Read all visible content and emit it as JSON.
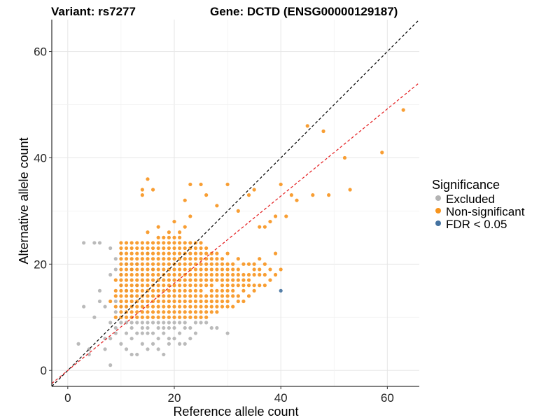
{
  "chart_data": {
    "type": "scatter",
    "title_left": "Variant: rs7277",
    "title_right": "Gene: DCTD (ENSG00000129187)",
    "xlabel": "Reference allele count",
    "ylabel": "Alternative allele count",
    "xlim": [
      -3,
      66
    ],
    "ylim": [
      -3,
      66
    ],
    "xticks": [
      0,
      20,
      40,
      60
    ],
    "yticks": [
      0,
      20,
      40,
      60
    ],
    "grid": true,
    "legend": {
      "title": "Significance",
      "placement": "right",
      "entries": [
        {
          "label": "Excluded",
          "color": "#b3b3b3"
        },
        {
          "label": "Non-significant",
          "color": "#f7941d"
        },
        {
          "label": "FDR < 0.05",
          "color": "#4472a0"
        }
      ]
    },
    "reference_lines": [
      {
        "name": "y = x",
        "slope": 1,
        "intercept": 0,
        "color": "#000000",
        "style": "dashed"
      },
      {
        "name": "fit",
        "slope": 0.82,
        "intercept": 0,
        "color": "#e41a1c",
        "style": "dashed"
      }
    ],
    "series": [
      {
        "name": "Excluded",
        "color": "#b3b3b3",
        "x": [
          2,
          3,
          3,
          4,
          4,
          5,
          5,
          6,
          6,
          6,
          7,
          7,
          7,
          8,
          8,
          8,
          8,
          8,
          9,
          9,
          9,
          9,
          9,
          9,
          10,
          10,
          10,
          10,
          10,
          10,
          11,
          11,
          11,
          11,
          11,
          11,
          12,
          12,
          12,
          12,
          12,
          12,
          13,
          13,
          13,
          13,
          13,
          14,
          14,
          14,
          14,
          14,
          15,
          15,
          15,
          15,
          15,
          16,
          16,
          16,
          16,
          17,
          17,
          17,
          17,
          18,
          18,
          18,
          18,
          19,
          19,
          19,
          19,
          20,
          20,
          20,
          21,
          21,
          21,
          22,
          22,
          22,
          23,
          23,
          24,
          24,
          25,
          26,
          27,
          28,
          30
        ],
        "y": [
          5,
          24,
          12,
          4,
          3,
          24,
          10,
          24,
          15,
          13,
          12,
          6,
          4,
          23,
          18,
          9,
          6,
          1,
          21,
          19,
          13,
          11,
          8,
          7,
          22,
          18,
          16,
          12,
          9,
          5,
          20,
          15,
          12,
          9,
          7,
          4,
          19,
          14,
          9,
          8,
          6,
          3,
          20,
          16,
          9,
          7,
          3,
          18,
          9,
          8,
          7,
          5,
          22,
          9,
          8,
          7,
          4,
          19,
          9,
          7,
          5,
          9,
          8,
          6,
          4,
          9,
          8,
          7,
          3,
          9,
          8,
          6,
          5,
          9,
          8,
          6,
          9,
          7,
          5,
          9,
          8,
          5,
          8,
          6,
          9,
          7,
          9,
          9,
          8,
          8,
          7
        ]
      },
      {
        "name": "Non-significant",
        "color": "#f7941d",
        "x": [
          8,
          9,
          9,
          9,
          9,
          9,
          10,
          10,
          10,
          10,
          10,
          10,
          10,
          10,
          10,
          10,
          10,
          10,
          10,
          10,
          10,
          11,
          11,
          11,
          11,
          11,
          11,
          11,
          11,
          11,
          11,
          11,
          11,
          11,
          11,
          11,
          12,
          12,
          12,
          12,
          12,
          12,
          12,
          12,
          12,
          12,
          12,
          12,
          12,
          12,
          12,
          13,
          13,
          13,
          13,
          13,
          13,
          13,
          13,
          13,
          13,
          13,
          13,
          13,
          13,
          13,
          14,
          14,
          14,
          14,
          14,
          14,
          14,
          14,
          14,
          14,
          14,
          14,
          14,
          14,
          14,
          15,
          15,
          15,
          15,
          15,
          15,
          15,
          15,
          15,
          15,
          15,
          15,
          15,
          15,
          15,
          15,
          16,
          16,
          16,
          16,
          16,
          16,
          16,
          16,
          16,
          16,
          16,
          16,
          16,
          16,
          16,
          17,
          17,
          17,
          17,
          17,
          17,
          17,
          17,
          17,
          17,
          17,
          17,
          17,
          17,
          17,
          17,
          17,
          18,
          18,
          18,
          18,
          18,
          18,
          18,
          18,
          18,
          18,
          18,
          18,
          18,
          18,
          18,
          18,
          19,
          19,
          19,
          19,
          19,
          19,
          19,
          19,
          19,
          19,
          19,
          19,
          19,
          19,
          19,
          19,
          19,
          20,
          20,
          20,
          20,
          20,
          20,
          20,
          20,
          20,
          20,
          20,
          20,
          20,
          20,
          20,
          20,
          20,
          21,
          21,
          21,
          21,
          21,
          21,
          21,
          21,
          21,
          21,
          21,
          21,
          21,
          21,
          21,
          21,
          21,
          22,
          22,
          22,
          22,
          22,
          22,
          22,
          22,
          22,
          22,
          22,
          22,
          22,
          22,
          22,
          22,
          23,
          23,
          23,
          23,
          23,
          23,
          23,
          23,
          23,
          23,
          23,
          23,
          23,
          23,
          23,
          23,
          24,
          24,
          24,
          24,
          24,
          24,
          24,
          24,
          24,
          24,
          24,
          24,
          24,
          24,
          24,
          25,
          25,
          25,
          25,
          25,
          25,
          25,
          25,
          25,
          25,
          25,
          25,
          25,
          25,
          25,
          26,
          26,
          26,
          26,
          26,
          26,
          26,
          26,
          26,
          26,
          26,
          26,
          26,
          27,
          27,
          27,
          27,
          27,
          27,
          27,
          27,
          27,
          27,
          27,
          27,
          28,
          28,
          28,
          28,
          28,
          28,
          28,
          28,
          28,
          28,
          28,
          29,
          29,
          29,
          29,
          29,
          29,
          29,
          29,
          29,
          29,
          30,
          30,
          30,
          30,
          30,
          30,
          30,
          30,
          30,
          30,
          31,
          31,
          31,
          31,
          31,
          31,
          31,
          31,
          32,
          32,
          32,
          32,
          32,
          32,
          32,
          33,
          33,
          33,
          33,
          33,
          33,
          34,
          34,
          34,
          34,
          34,
          35,
          35,
          35,
          35,
          35,
          36,
          36,
          36,
          36,
          37,
          37,
          37,
          38,
          38,
          39,
          39,
          40,
          14,
          14,
          15,
          16,
          22,
          23,
          25,
          26,
          28,
          30,
          32,
          34,
          35,
          36,
          37,
          38,
          39,
          40,
          41,
          42,
          43,
          45,
          46,
          48,
          49,
          52,
          53,
          59,
          63
        ],
        "y": [
          13,
          10,
          12,
          14,
          15,
          17,
          10,
          11,
          12,
          13,
          14,
          15,
          16,
          17,
          18,
          19,
          20,
          21,
          22,
          23,
          24,
          10,
          11,
          12,
          13,
          14,
          15,
          16,
          17,
          18,
          19,
          20,
          21,
          22,
          23,
          24,
          10,
          11,
          12,
          13,
          14,
          15,
          16,
          17,
          18,
          19,
          20,
          21,
          22,
          23,
          24,
          10,
          11,
          12,
          13,
          14,
          15,
          16,
          17,
          18,
          19,
          20,
          21,
          22,
          23,
          24,
          10,
          11,
          12,
          13,
          14,
          15,
          16,
          17,
          18,
          19,
          20,
          21,
          22,
          23,
          24,
          10,
          11,
          12,
          13,
          14,
          15,
          16,
          17,
          18,
          19,
          20,
          21,
          22,
          23,
          24,
          26,
          10,
          11,
          12,
          13,
          14,
          15,
          16,
          17,
          18,
          19,
          20,
          21,
          22,
          23,
          24,
          10,
          11,
          12,
          13,
          14,
          15,
          16,
          17,
          18,
          19,
          20,
          21,
          22,
          23,
          24,
          25,
          27,
          10,
          11,
          12,
          13,
          14,
          15,
          16,
          17,
          18,
          19,
          20,
          21,
          22,
          23,
          24,
          25,
          10,
          11,
          12,
          13,
          14,
          15,
          16,
          17,
          18,
          19,
          20,
          21,
          22,
          23,
          24,
          25,
          26,
          10,
          11,
          12,
          13,
          14,
          15,
          16,
          17,
          18,
          19,
          20,
          21,
          22,
          23,
          24,
          25,
          28,
          10,
          11,
          12,
          13,
          14,
          15,
          16,
          17,
          18,
          19,
          20,
          21,
          22,
          23,
          24,
          25,
          26,
          10,
          11,
          12,
          13,
          14,
          15,
          16,
          17,
          18,
          19,
          20,
          21,
          22,
          23,
          24,
          27,
          10,
          11,
          12,
          13,
          14,
          15,
          16,
          17,
          18,
          19,
          20,
          21,
          22,
          23,
          24,
          29,
          10,
          11,
          12,
          13,
          14,
          15,
          16,
          17,
          18,
          19,
          20,
          21,
          22,
          23,
          24,
          10,
          11,
          12,
          13,
          14,
          15,
          16,
          17,
          18,
          19,
          20,
          21,
          22,
          23,
          24,
          10,
          11,
          12,
          13,
          14,
          16,
          17,
          18,
          19,
          20,
          21,
          22,
          23,
          11,
          12,
          13,
          14,
          15,
          16,
          17,
          18,
          19,
          20,
          21,
          22,
          11,
          12,
          13,
          14,
          15,
          17,
          18,
          19,
          20,
          21,
          22,
          12,
          13,
          14,
          15,
          16,
          17,
          18,
          19,
          20,
          21,
          12,
          13,
          14,
          15,
          16,
          17,
          18,
          19,
          20,
          22,
          12,
          14,
          15,
          16,
          17,
          18,
          19,
          20,
          13,
          14,
          16,
          17,
          18,
          19,
          21,
          13,
          15,
          16,
          17,
          18,
          20,
          14,
          16,
          17,
          18,
          20,
          15,
          16,
          18,
          19,
          20,
          16,
          18,
          19,
          21,
          16,
          18,
          20,
          17,
          19,
          18,
          22,
          19,
          33,
          34,
          36,
          34,
          32,
          35,
          35,
          33,
          31,
          35,
          30,
          33,
          34,
          27,
          27,
          28,
          29,
          35,
          29,
          33,
          32,
          46,
          33,
          45,
          33,
          40,
          34,
          41,
          49
        ]
      },
      {
        "name": "FDR < 0.05",
        "color": "#4472a0",
        "x": [
          40
        ],
        "y": [
          15
        ]
      }
    ]
  }
}
